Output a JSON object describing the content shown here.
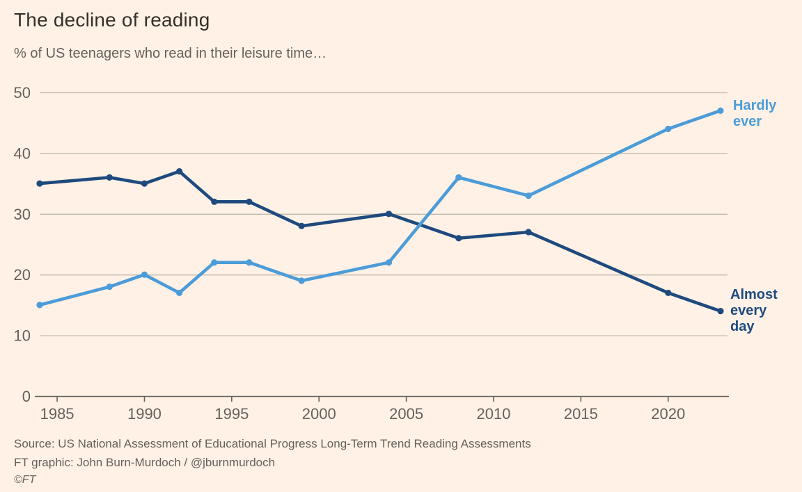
{
  "page": {
    "background_color": "#FFF1E5"
  },
  "chart_data": {
    "type": "line",
    "title": "The decline of reading",
    "subtitle": "% of US teenagers who read in their leisure time…",
    "x": [
      1984,
      1988,
      1990,
      1992,
      1994,
      1996,
      1999,
      2004,
      2008,
      2012,
      2020,
      2023
    ],
    "series": [
      {
        "name": "Hardly ever",
        "color": "#4B9CD8",
        "values": [
          15,
          18,
          20,
          17,
          22,
          22,
          19,
          22,
          36,
          33,
          44,
          47
        ],
        "label_lines": [
          "Hardly",
          "ever"
        ]
      },
      {
        "name": "Almost every day",
        "color": "#1E4A7E",
        "values": [
          35,
          36,
          35,
          37,
          32,
          32,
          28,
          30,
          26,
          27,
          17,
          14
        ],
        "label_lines": [
          "Almost",
          "every",
          "day"
        ]
      }
    ],
    "xlim": [
      1984,
      2023.4
    ],
    "ylim": [
      0,
      50
    ],
    "x_ticks": [
      1985,
      1990,
      1995,
      2000,
      2005,
      2010,
      2015,
      2020
    ],
    "y_ticks": [
      0,
      10,
      20,
      30,
      40,
      50
    ],
    "grid": "horizontal gridlines on",
    "legend_position": "labels at line ends (right side)",
    "axis_color": "#66605C",
    "grid_color": "#C2B8AE",
    "xlabel": "",
    "ylabel": ""
  },
  "footer": {
    "source": "Source: US National Assessment of Educational Progress Long-Term Trend Reading Assessments",
    "credit": "FT graphic: John Burn-Murdoch / @jburnmurdoch",
    "copyright": "©FT"
  }
}
